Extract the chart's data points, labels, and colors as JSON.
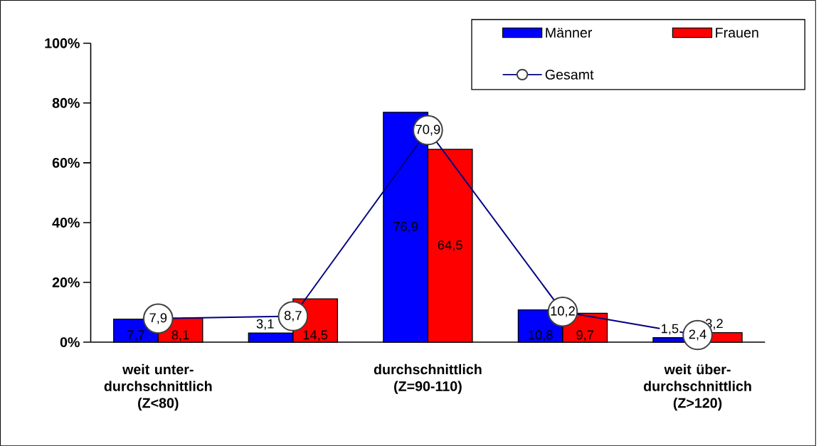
{
  "chart_data": {
    "type": "bar",
    "categories": [
      "weit unter- durchschnittlich (Z<80)",
      null,
      "durchschnittlich (Z=90-110)",
      null,
      "weit über- durchschnittlich (Z>120)"
    ],
    "series": [
      {
        "name": "Männer",
        "color": "#0000ff",
        "values": [
          7.7,
          3.1,
          76.9,
          10.8,
          1.5
        ],
        "value_labels": [
          "7,7",
          "3,1",
          "76,9",
          "10,8",
          "1,5"
        ]
      },
      {
        "name": "Frauen",
        "color": "#ff0000",
        "values": [
          8.1,
          14.5,
          64.5,
          9.7,
          3.2
        ],
        "value_labels": [
          "8,1",
          "14,5",
          "64,5",
          "9,7",
          "3,2"
        ]
      },
      {
        "name": "Gesamt",
        "type": "line",
        "color": "#000080",
        "values": [
          7.9,
          8.7,
          70.9,
          10.2,
          2.4
        ],
        "value_labels": [
          "7,9",
          "8,7",
          "70,9",
          "10,2",
          "2,4"
        ]
      }
    ],
    "marker": "circle",
    "ylim": [
      0,
      100
    ],
    "yticks": [
      {
        "value": 0,
        "label": "0%"
      },
      {
        "value": 20,
        "label": "20%"
      },
      {
        "value": 40,
        "label": "40%"
      },
      {
        "value": 60,
        "label": "60%"
      },
      {
        "value": 80,
        "label": "80%"
      },
      {
        "value": 100,
        "label": "100%"
      }
    ],
    "legend": "top right"
  }
}
